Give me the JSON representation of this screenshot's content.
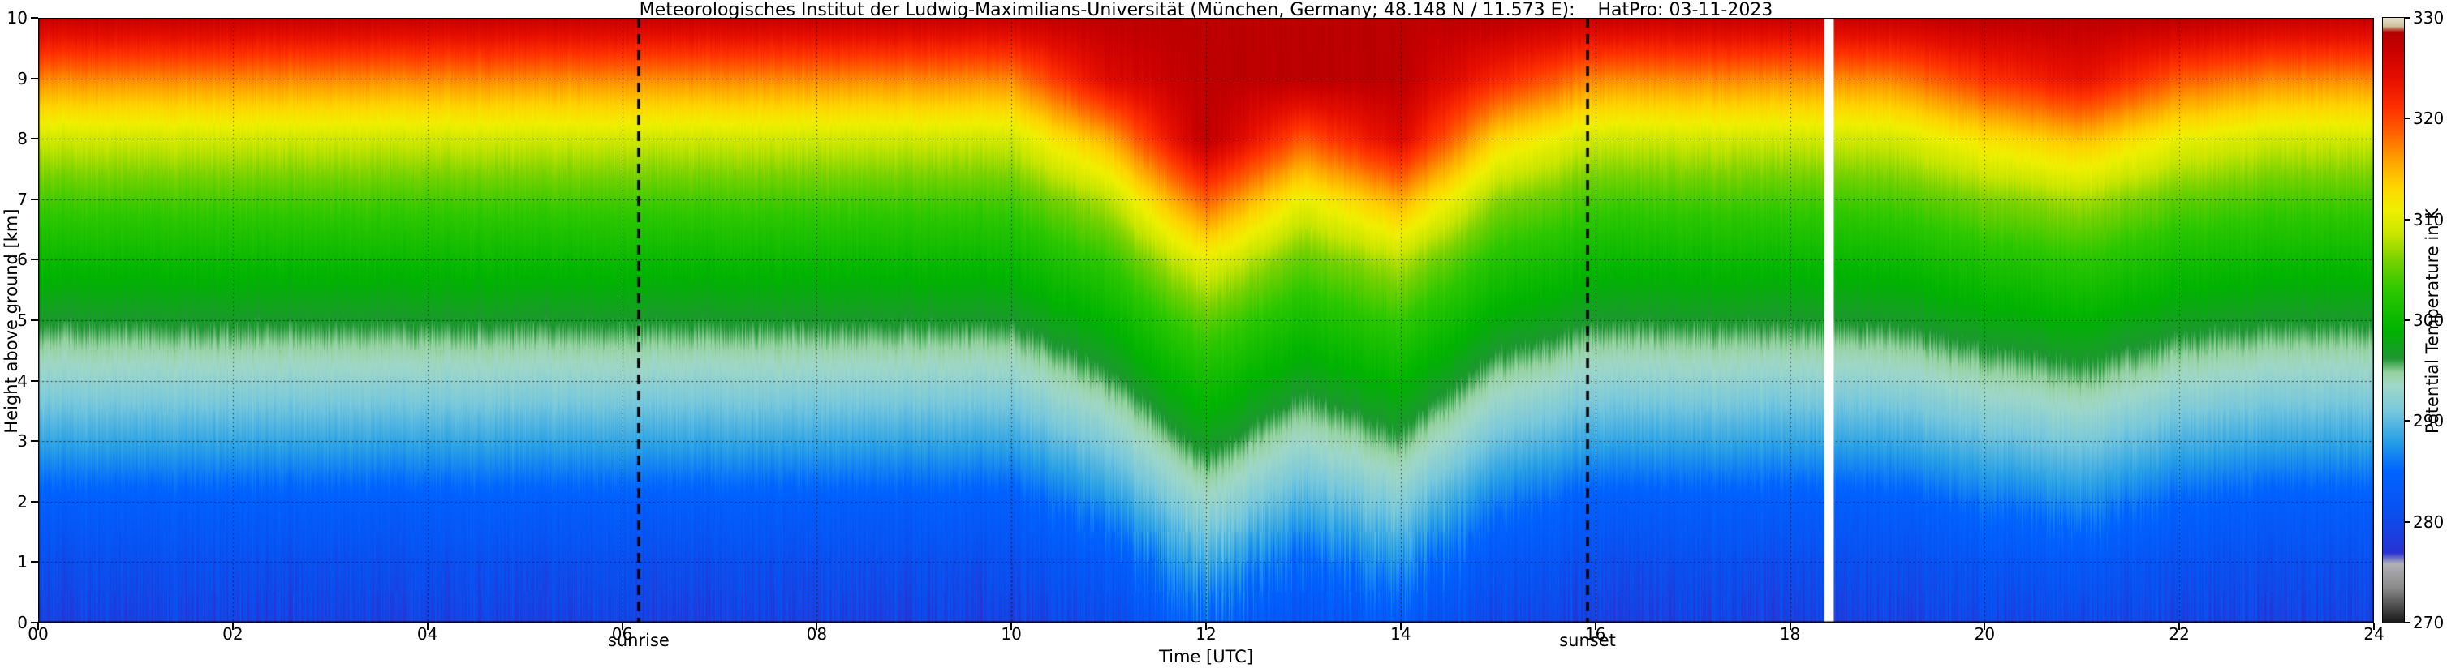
{
  "chart_data": {
    "type": "heatmap",
    "title": "Meteorologisches Institut der Ludwig-Maximilians-Universität (München, Germany; 48.148 N / 11.573 E):    HatPro: 03-11-2023",
    "xlabel": "Time [UTC]",
    "ylabel": "Height above ground [km]",
    "value_label": "Potential Temperature in K",
    "xlim": [
      0,
      24
    ],
    "ylim": [
      0,
      10
    ],
    "value_range": [
      270,
      330
    ],
    "grid": {
      "style": "dotted",
      "vertical_every_hours": 2,
      "horizontal_every_km": 1
    },
    "x_ticks": {
      "values": [
        0,
        2,
        4,
        6,
        8,
        10,
        12,
        14,
        16,
        18,
        20,
        22,
        24
      ],
      "labels": [
        "00",
        "02",
        "04",
        "06",
        "08",
        "10",
        "12",
        "14",
        "16",
        "18",
        "20",
        "22",
        "24"
      ]
    },
    "y_ticks": {
      "values": [
        0,
        1,
        2,
        3,
        4,
        5,
        6,
        7,
        8,
        9,
        10
      ],
      "labels": [
        "0",
        "1",
        "2",
        "3",
        "4",
        "5",
        "6",
        "7",
        "8",
        "9",
        "10"
      ]
    },
    "colorbar_ticks": {
      "values": [
        270,
        280,
        290,
        300,
        310,
        320,
        330
      ],
      "labels": [
        "270",
        "280",
        "290",
        "300",
        "310",
        "320",
        "330"
      ]
    },
    "colormap": [
      [
        270.0,
        "#191919"
      ],
      [
        271.5,
        "#4b4b4b"
      ],
      [
        273.5,
        "#8c8c8c"
      ],
      [
        275.8,
        "#b0b0b6"
      ],
      [
        276.9,
        "#2832d2"
      ],
      [
        281.0,
        "#0a50f0"
      ],
      [
        285.0,
        "#0064ff"
      ],
      [
        288.0,
        "#28a0e6"
      ],
      [
        291.0,
        "#78c8dc"
      ],
      [
        293.5,
        "#a0d8c8"
      ],
      [
        294.8,
        "#96d2a0"
      ],
      [
        296.2,
        "#1e9632"
      ],
      [
        299.0,
        "#00b400"
      ],
      [
        303.0,
        "#2dc800"
      ],
      [
        306.0,
        "#78d200"
      ],
      [
        308.5,
        "#c8e600"
      ],
      [
        311.0,
        "#f0f000"
      ],
      [
        313.5,
        "#ffd200"
      ],
      [
        316.0,
        "#ffa000"
      ],
      [
        318.5,
        "#ff6400"
      ],
      [
        321.0,
        "#ff3200"
      ],
      [
        324.0,
        "#e60f00"
      ],
      [
        327.0,
        "#c80000"
      ],
      [
        328.6,
        "#b40000"
      ],
      [
        329.2,
        "#cdc09b"
      ],
      [
        330.0,
        "#e6e1cd"
      ]
    ],
    "x": [
      0,
      1,
      2,
      3,
      4,
      5,
      6,
      7,
      8,
      9,
      10,
      11,
      12,
      13,
      14,
      15,
      16,
      17,
      18,
      19,
      20,
      21,
      22,
      23,
      24
    ],
    "y": [
      0,
      1,
      2,
      3,
      4,
      5,
      6,
      7,
      8,
      9,
      10
    ],
    "values": [
      [
        279,
        279,
        279,
        279,
        279,
        279,
        279,
        279,
        279,
        279,
        279,
        280.6,
        284.9,
        281.6,
        283.4,
        280,
        279,
        279,
        279,
        279,
        279.8,
        280.4,
        279.4,
        279,
        279
      ],
      [
        281,
        281,
        281,
        281,
        281,
        281,
        281,
        281,
        281,
        281,
        281,
        283.4,
        289.3,
        284.9,
        287.6,
        282.5,
        281,
        281,
        281,
        281,
        282.2,
        283.1,
        281.6,
        281,
        281
      ],
      [
        284,
        284,
        284,
        284,
        284,
        284,
        284,
        284,
        284,
        284,
        284,
        287.6,
        293.3,
        289.3,
        291.7,
        286.3,
        284,
        284,
        284,
        284,
        285.8,
        287.2,
        284.9,
        284,
        284
      ],
      [
        288.5,
        288.5,
        288.5,
        288.5,
        288.5,
        288.5,
        288.5,
        288.5,
        288.5,
        288.5,
        288.5,
        291.7,
        297.2,
        293.3,
        295.7,
        290.5,
        288.5,
        288.5,
        288.5,
        288.5,
        290.1,
        291.3,
        289.3,
        288.5,
        288.5
      ],
      [
        292.5,
        292.5,
        292.5,
        292.5,
        292.5,
        292.5,
        292.5,
        292.5,
        292.5,
        292.5,
        292.5,
        295.7,
        300.8,
        297.2,
        299.3,
        294.5,
        292.5,
        292.5,
        292.5,
        292.5,
        294.1,
        295.3,
        293.3,
        292.5,
        292.5
      ],
      [
        296.5,
        296.5,
        296.5,
        296.5,
        296.5,
        296.5,
        296.5,
        296.5,
        296.5,
        296.5,
        296.5,
        299.3,
        305,
        300.8,
        303.2,
        298.3,
        296.5,
        296.5,
        296.5,
        296.5,
        297.9,
        299,
        297.2,
        296.5,
        296.5
      ],
      [
        300,
        300,
        300,
        300,
        300,
        300,
        300,
        300,
        300,
        300,
        300,
        303.2,
        310.6,
        305,
        308,
        302,
        300,
        300,
        300,
        300,
        301.6,
        302.8,
        300.8,
        300,
        300
      ],
      [
        304,
        304,
        304,
        304,
        304,
        304,
        304,
        304,
        304,
        304,
        304,
        308,
        319,
        310.6,
        315.4,
        306.5,
        304,
        304,
        304,
        304,
        306,
        307.5,
        305,
        304,
        304
      ],
      [
        309,
        309,
        309,
        309,
        309,
        309,
        309,
        309,
        309,
        309,
        309,
        315.4,
        328,
        319,
        325,
        313,
        309,
        309,
        309,
        309,
        312.2,
        314.6,
        310.6,
        309,
        309
      ],
      [
        317,
        317,
        317,
        317,
        317,
        317,
        317,
        317,
        317,
        317,
        317,
        325,
        328,
        328,
        328,
        322,
        317,
        317,
        317,
        317,
        321,
        324,
        319,
        317,
        317
      ],
      [
        327,
        327,
        327,
        327,
        327,
        327,
        327,
        327,
        327,
        327,
        327,
        328,
        328,
        328,
        328,
        328,
        327,
        327,
        327,
        327,
        328,
        328,
        328,
        327,
        327
      ]
    ],
    "annotations": {
      "sunrise": {
        "label": "sunrise",
        "time_utc": 6.17
      },
      "sunset": {
        "label": "sunset",
        "time_utc": 15.92
      },
      "missing_data_time_utc": [
        18.36,
        18.45
      ]
    }
  }
}
